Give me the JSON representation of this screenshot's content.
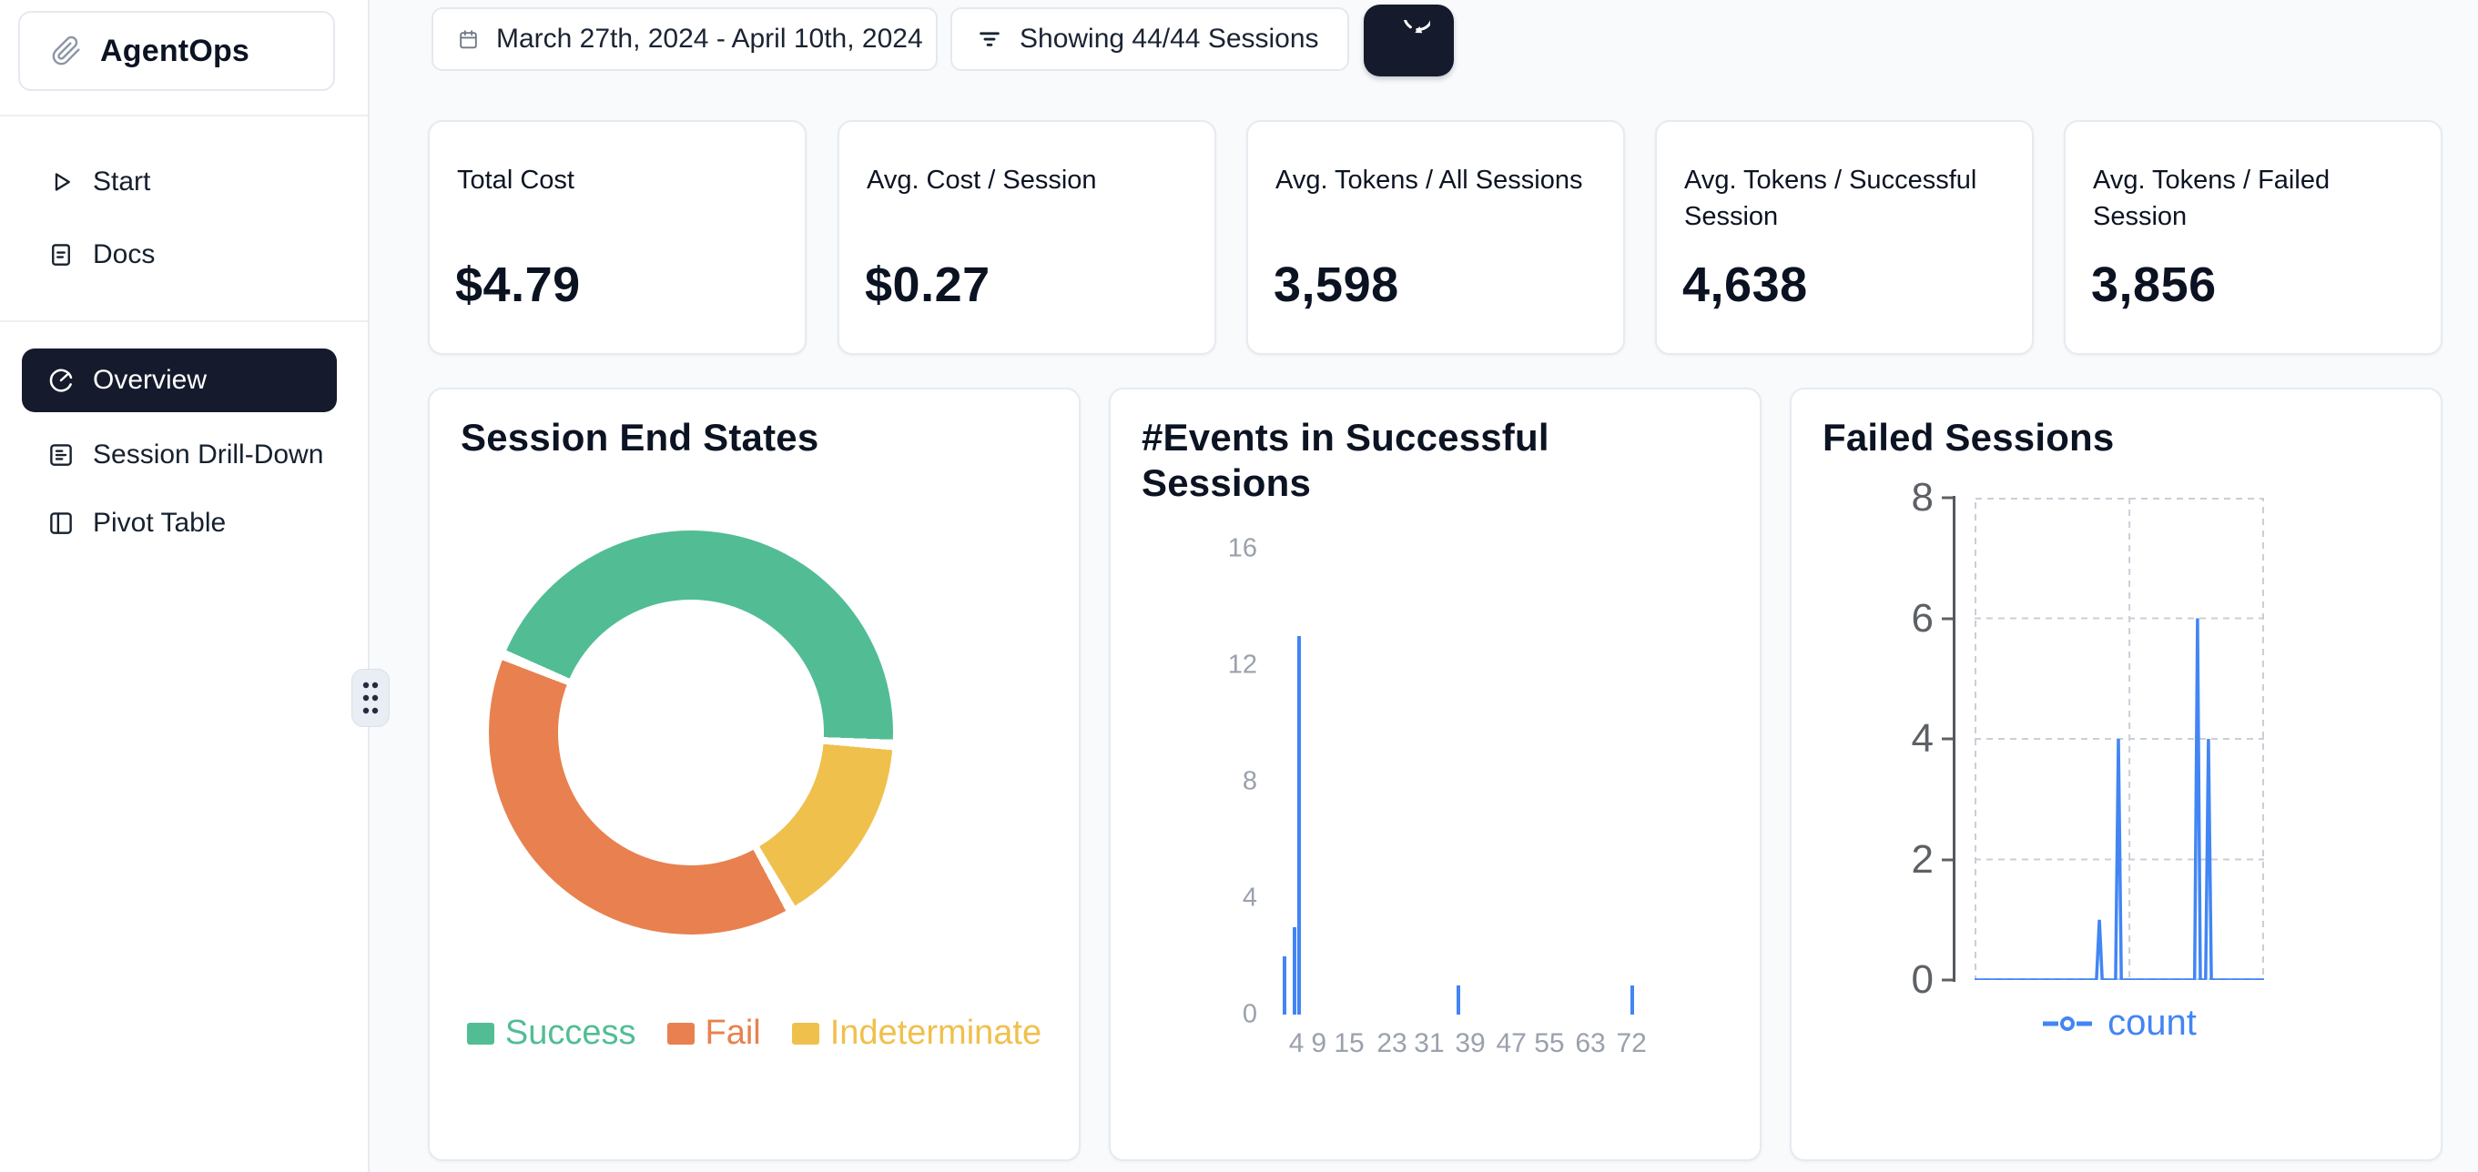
{
  "app": {
    "name": "AgentOps"
  },
  "sidebar": {
    "items": [
      {
        "label": "Start",
        "icon": "play-icon"
      },
      {
        "label": "Docs",
        "icon": "document-icon"
      },
      {
        "label": "Overview",
        "icon": "gauge-icon",
        "active": true
      },
      {
        "label": "Session Drill-Down",
        "icon": "list-icon"
      },
      {
        "label": "Pivot Table",
        "icon": "split-panel-icon"
      }
    ]
  },
  "topbar": {
    "date_range": "March 27th, 2024 - April 10th, 2024",
    "sessions_filter": "Showing 44/44 Sessions",
    "icons": [
      "calendar-icon",
      "filter-icon",
      "refresh-icon"
    ]
  },
  "stats": [
    {
      "label": "Total Cost",
      "value": "$4.79"
    },
    {
      "label": "Avg. Cost / Session",
      "value": "$0.27"
    },
    {
      "label": "Avg. Tokens / All Sessions",
      "value": "3,598"
    },
    {
      "label": "Avg. Tokens / Successful Session",
      "value": "4,638"
    },
    {
      "label": "Avg. Tokens / Failed Session",
      "value": "3,856"
    }
  ],
  "colors": {
    "page_bg": "#f8fafc",
    "accent_dark": "#151b2c",
    "card_border": "#e6ebf1",
    "blue": "#4285f4",
    "success_green": "#52bd95",
    "fail_orange": "#e8814f",
    "indeterminate_yellow": "#f0c04d"
  },
  "chart_data": [
    {
      "type": "pie",
      "donut": true,
      "title": "Session End States",
      "labels": [
        "Success",
        "Fail",
        "Indeterminate"
      ],
      "values_pct": [
        45,
        39,
        16
      ],
      "legend_position": "bottom",
      "start_deg": 294,
      "gap_deg": 3,
      "gap_color": "#ffffff",
      "segments": [
        {
          "label": "Success",
          "color": "#52bd95",
          "sweep_deg": 158
        },
        {
          "label": "Indeterminate",
          "color": "#f0c04d",
          "sweep_deg": 54
        },
        {
          "label": "Fail",
          "color": "#e8814f",
          "sweep_deg": 139
        }
      ],
      "legend": [
        {
          "label": "Success",
          "color": "#52bd95"
        },
        {
          "label": "Fail",
          "color": "#e8814f"
        },
        {
          "label": "Indeterminate",
          "color": "#f0c04d"
        }
      ]
    },
    {
      "type": "bar",
      "title": "#Events in Successful Sessions",
      "ylim": [
        0,
        16
      ],
      "yticks": [
        0,
        4,
        8,
        12,
        16
      ],
      "grid": false,
      "color": "#4285f4",
      "x_ticks": [
        {
          "label": "4",
          "x_pct": 5.7
        },
        {
          "label": "9",
          "x_pct": 10.9
        },
        {
          "label": "15",
          "x_pct": 17.9
        },
        {
          "label": "23",
          "x_pct": 27.8
        },
        {
          "label": "31",
          "x_pct": 36.4
        },
        {
          "label": "39",
          "x_pct": 45.9
        },
        {
          "label": "47",
          "x_pct": 55.4
        },
        {
          "label": "55",
          "x_pct": 64.2
        },
        {
          "label": "63",
          "x_pct": 73.7
        },
        {
          "label": "72",
          "x_pct": 83.2
        }
      ],
      "bars": [
        {
          "x": 2,
          "count": 2,
          "x_pct": 2.9
        },
        {
          "x": 4,
          "count": 3,
          "x_pct": 5.3
        },
        {
          "x": 5,
          "count": 13,
          "x_pct": 6.3
        },
        {
          "x": 37,
          "count": 1,
          "x_pct": 43.2
        },
        {
          "x": 72,
          "count": 1,
          "x_pct": 83.4
        }
      ]
    },
    {
      "type": "line",
      "title": "Failed Sessions",
      "ylim": [
        0,
        8
      ],
      "yticks": [
        0,
        2,
        4,
        6,
        8
      ],
      "grid": "dashed",
      "grid_color": "#c9cfd7",
      "vline_pct": 53.5,
      "spikes": [
        1,
        4,
        6,
        4
      ],
      "series": [
        {
          "name": "count",
          "color": "#4285f4",
          "points_pct": [
            [
              0,
              0
            ],
            [
              42.1,
              0
            ],
            [
              43.1,
              1
            ],
            [
              44.1,
              0
            ],
            [
              48.7,
              0
            ],
            [
              49.7,
              4
            ],
            [
              50.7,
              0
            ],
            [
              76.0,
              0
            ],
            [
              77.0,
              6
            ],
            [
              78.0,
              0
            ],
            [
              79.8,
              0
            ],
            [
              80.8,
              4
            ],
            [
              81.8,
              0
            ],
            [
              100,
              0
            ]
          ]
        }
      ]
    }
  ]
}
